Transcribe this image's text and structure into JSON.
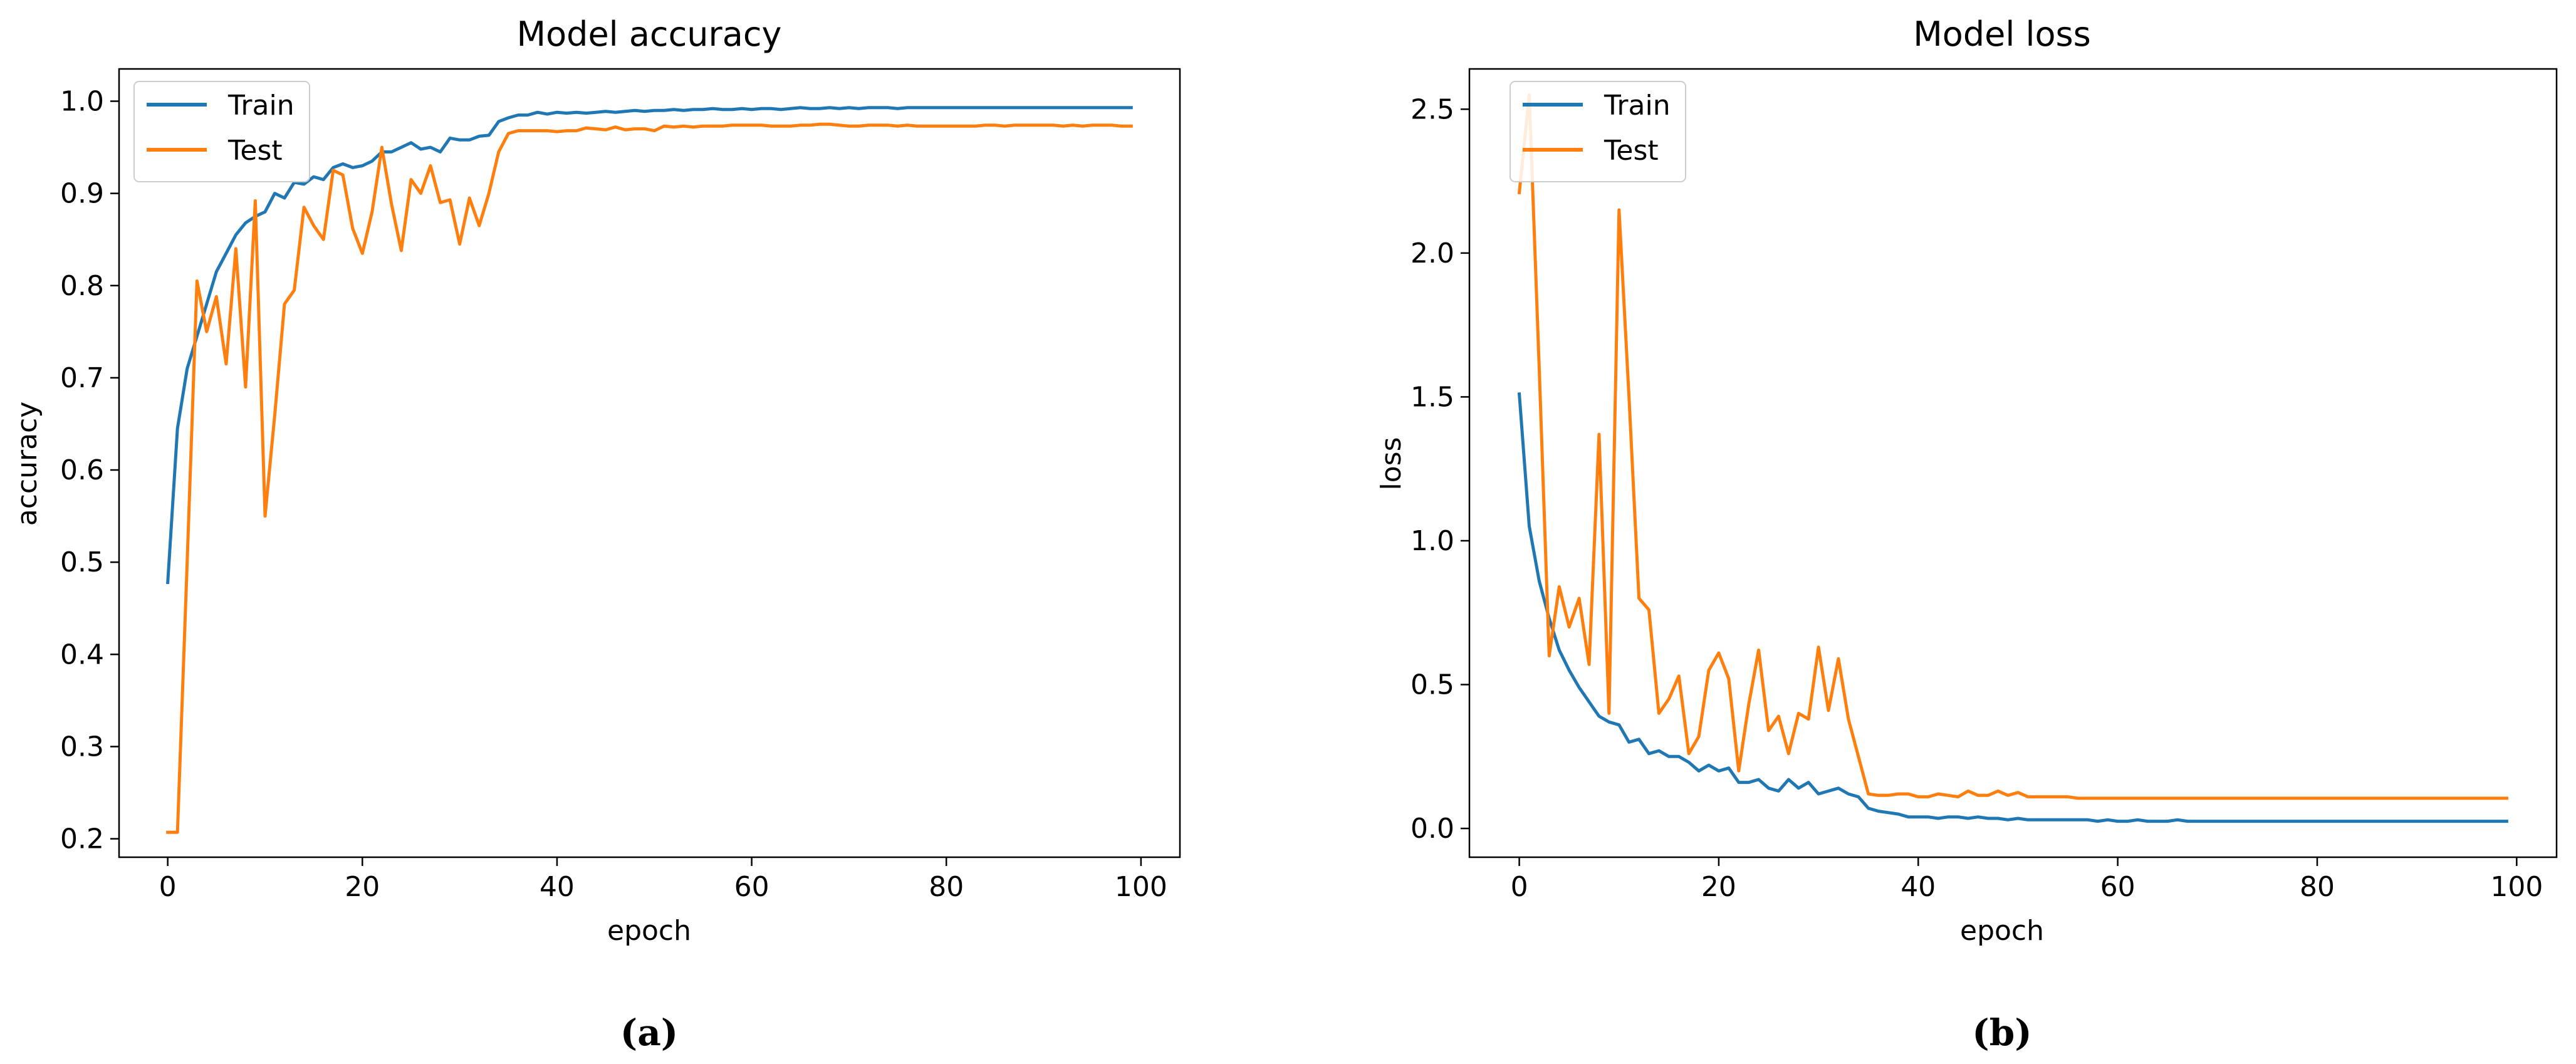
{
  "colors": {
    "train": "#1f77b4",
    "test": "#ff7f0e",
    "axes": "#000000",
    "background": "#ffffff"
  },
  "captions": [
    "(a)",
    "(b)"
  ],
  "chart_data": [
    {
      "type": "line",
      "title": "Model accuracy",
      "xlabel": "epoch",
      "ylabel": "accuracy",
      "xlim": [
        -5,
        104
      ],
      "ylim": [
        0.18,
        1.035
      ],
      "xticks": [
        0,
        20,
        40,
        60,
        80,
        100
      ],
      "yticks": [
        0.2,
        0.3,
        0.4,
        0.5,
        0.6,
        0.7,
        0.8,
        0.9,
        1.0
      ],
      "ytick_labels": [
        "0.2",
        "0.3",
        "0.4",
        "0.5",
        "0.6",
        "0.7",
        "0.8",
        "0.9",
        "1.0"
      ],
      "grid": false,
      "legend": "top-left",
      "series": [
        {
          "name": "Train",
          "color": "#1f77b4",
          "x": [
            0,
            1,
            2,
            3,
            4,
            5,
            6,
            7,
            8,
            9,
            10,
            11,
            12,
            13,
            14,
            15,
            16,
            17,
            18,
            19,
            20,
            21,
            22,
            23,
            24,
            25,
            26,
            27,
            28,
            29,
            30,
            31,
            32,
            33,
            34,
            35,
            36,
            37,
            38,
            39,
            40,
            41,
            42,
            43,
            44,
            45,
            46,
            47,
            48,
            49,
            50,
            51,
            52,
            53,
            54,
            55,
            56,
            57,
            58,
            59,
            60,
            61,
            62,
            63,
            64,
            65,
            66,
            67,
            68,
            69,
            70,
            71,
            72,
            73,
            74,
            75,
            76,
            77,
            78,
            79,
            80,
            81,
            82,
            83,
            84,
            85,
            86,
            87,
            88,
            89,
            90,
            91,
            92,
            93,
            94,
            95,
            96,
            97,
            98,
            99
          ],
          "values": [
            0.478,
            0.645,
            0.71,
            0.745,
            0.78,
            0.815,
            0.835,
            0.855,
            0.868,
            0.875,
            0.88,
            0.9,
            0.895,
            0.912,
            0.91,
            0.918,
            0.915,
            0.928,
            0.932,
            0.928,
            0.93,
            0.935,
            0.945,
            0.945,
            0.95,
            0.955,
            0.948,
            0.95,
            0.945,
            0.96,
            0.958,
            0.958,
            0.962,
            0.963,
            0.978,
            0.982,
            0.985,
            0.985,
            0.988,
            0.986,
            0.988,
            0.987,
            0.988,
            0.987,
            0.988,
            0.989,
            0.988,
            0.989,
            0.99,
            0.989,
            0.99,
            0.99,
            0.991,
            0.99,
            0.991,
            0.991,
            0.992,
            0.991,
            0.991,
            0.992,
            0.991,
            0.992,
            0.992,
            0.991,
            0.992,
            0.993,
            0.992,
            0.992,
            0.993,
            0.992,
            0.993,
            0.992,
            0.993,
            0.993,
            0.993,
            0.992,
            0.993,
            0.993,
            0.993,
            0.993,
            0.993,
            0.993,
            0.993,
            0.993,
            0.993,
            0.993,
            0.993,
            0.993,
            0.993,
            0.993,
            0.993,
            0.993,
            0.993,
            0.993,
            0.993,
            0.993,
            0.993,
            0.993,
            0.993,
            0.993
          ]
        },
        {
          "name": "Test",
          "color": "#ff7f0e",
          "x": [
            0,
            1,
            2,
            3,
            4,
            5,
            6,
            7,
            8,
            9,
            10,
            11,
            12,
            13,
            14,
            15,
            16,
            17,
            18,
            19,
            20,
            21,
            22,
            23,
            24,
            25,
            26,
            27,
            28,
            29,
            30,
            31,
            32,
            33,
            34,
            35,
            36,
            37,
            38,
            39,
            40,
            41,
            42,
            43,
            44,
            45,
            46,
            47,
            48,
            49,
            50,
            51,
            52,
            53,
            54,
            55,
            56,
            57,
            58,
            59,
            60,
            61,
            62,
            63,
            64,
            65,
            66,
            67,
            68,
            69,
            70,
            71,
            72,
            73,
            74,
            75,
            76,
            77,
            78,
            79,
            80,
            81,
            82,
            83,
            84,
            85,
            86,
            87,
            88,
            89,
            90,
            91,
            92,
            93,
            94,
            95,
            96,
            97,
            98,
            99
          ],
          "values": [
            0.207,
            0.207,
            0.5,
            0.805,
            0.75,
            0.788,
            0.715,
            0.84,
            0.69,
            0.892,
            0.55,
            0.66,
            0.78,
            0.795,
            0.885,
            0.865,
            0.85,
            0.925,
            0.92,
            0.862,
            0.835,
            0.88,
            0.95,
            0.888,
            0.838,
            0.915,
            0.9,
            0.93,
            0.89,
            0.893,
            0.845,
            0.895,
            0.865,
            0.9,
            0.945,
            0.965,
            0.968,
            0.968,
            0.968,
            0.968,
            0.967,
            0.968,
            0.968,
            0.971,
            0.97,
            0.969,
            0.972,
            0.969,
            0.97,
            0.97,
            0.968,
            0.973,
            0.972,
            0.973,
            0.972,
            0.973,
            0.973,
            0.973,
            0.974,
            0.974,
            0.974,
            0.974,
            0.973,
            0.973,
            0.973,
            0.974,
            0.974,
            0.975,
            0.975,
            0.974,
            0.973,
            0.973,
            0.974,
            0.974,
            0.974,
            0.973,
            0.974,
            0.973,
            0.973,
            0.973,
            0.973,
            0.973,
            0.973,
            0.973,
            0.974,
            0.974,
            0.973,
            0.974,
            0.974,
            0.974,
            0.974,
            0.974,
            0.973,
            0.974,
            0.973,
            0.974,
            0.974,
            0.974,
            0.973,
            0.973
          ]
        }
      ]
    },
    {
      "type": "line",
      "title": "Model loss",
      "xlabel": "epoch",
      "ylabel": "loss",
      "xlim": [
        -5,
        104
      ],
      "ylim": [
        -0.1,
        2.64
      ],
      "xticks": [
        0,
        20,
        40,
        60,
        80,
        100
      ],
      "yticks": [
        0.0,
        0.5,
        1.0,
        1.5,
        2.0,
        2.5
      ],
      "ytick_labels": [
        "0.0",
        "0.5",
        "1.0",
        "1.5",
        "2.0",
        "2.5"
      ],
      "grid": false,
      "legend": "top-left",
      "series": [
        {
          "name": "Train",
          "color": "#1f77b4",
          "x": [
            0,
            1,
            2,
            3,
            4,
            5,
            6,
            7,
            8,
            9,
            10,
            11,
            12,
            13,
            14,
            15,
            16,
            17,
            18,
            19,
            20,
            21,
            22,
            23,
            24,
            25,
            26,
            27,
            28,
            29,
            30,
            31,
            32,
            33,
            34,
            35,
            36,
            37,
            38,
            39,
            40,
            41,
            42,
            43,
            44,
            45,
            46,
            47,
            48,
            49,
            50,
            51,
            52,
            53,
            54,
            55,
            56,
            57,
            58,
            59,
            60,
            61,
            62,
            63,
            64,
            65,
            66,
            67,
            68,
            69,
            70,
            71,
            72,
            73,
            74,
            75,
            76,
            77,
            78,
            79,
            80,
            81,
            82,
            83,
            84,
            85,
            86,
            87,
            88,
            89,
            90,
            91,
            92,
            93,
            94,
            95,
            96,
            97,
            98,
            99
          ],
          "values": [
            1.51,
            1.05,
            0.86,
            0.73,
            0.62,
            0.55,
            0.49,
            0.44,
            0.39,
            0.37,
            0.36,
            0.3,
            0.31,
            0.26,
            0.27,
            0.25,
            0.25,
            0.23,
            0.2,
            0.22,
            0.2,
            0.21,
            0.16,
            0.16,
            0.17,
            0.14,
            0.13,
            0.17,
            0.14,
            0.16,
            0.12,
            0.13,
            0.14,
            0.12,
            0.11,
            0.07,
            0.06,
            0.055,
            0.05,
            0.04,
            0.04,
            0.04,
            0.035,
            0.04,
            0.04,
            0.035,
            0.04,
            0.035,
            0.035,
            0.03,
            0.035,
            0.03,
            0.03,
            0.03,
            0.03,
            0.03,
            0.03,
            0.03,
            0.025,
            0.03,
            0.025,
            0.025,
            0.03,
            0.025,
            0.025,
            0.025,
            0.03,
            0.025,
            0.025,
            0.025,
            0.025,
            0.025,
            0.025,
            0.025,
            0.025,
            0.025,
            0.025,
            0.025,
            0.025,
            0.025,
            0.025,
            0.025,
            0.025,
            0.025,
            0.025,
            0.025,
            0.025,
            0.025,
            0.025,
            0.025,
            0.025,
            0.025,
            0.025,
            0.025,
            0.025,
            0.025,
            0.025,
            0.025,
            0.025,
            0.025
          ]
        },
        {
          "name": "Test",
          "color": "#ff7f0e",
          "x": [
            0,
            1,
            2,
            3,
            4,
            5,
            6,
            7,
            8,
            9,
            10,
            11,
            12,
            13,
            14,
            15,
            16,
            17,
            18,
            19,
            20,
            21,
            22,
            23,
            24,
            25,
            26,
            27,
            28,
            29,
            30,
            31,
            32,
            33,
            34,
            35,
            36,
            37,
            38,
            39,
            40,
            41,
            42,
            43,
            44,
            45,
            46,
            47,
            48,
            49,
            50,
            51,
            52,
            53,
            54,
            55,
            56,
            57,
            58,
            59,
            60,
            61,
            62,
            63,
            64,
            65,
            66,
            67,
            68,
            69,
            70,
            71,
            72,
            73,
            74,
            75,
            76,
            77,
            78,
            79,
            80,
            81,
            82,
            83,
            84,
            85,
            86,
            87,
            88,
            89,
            90,
            91,
            92,
            93,
            94,
            95,
            96,
            97,
            98,
            99
          ],
          "values": [
            2.21,
            2.55,
            1.6,
            0.6,
            0.84,
            0.7,
            0.8,
            0.57,
            1.37,
            0.4,
            2.15,
            1.5,
            0.8,
            0.76,
            0.4,
            0.45,
            0.53,
            0.26,
            0.32,
            0.55,
            0.61,
            0.52,
            0.2,
            0.43,
            0.62,
            0.34,
            0.39,
            0.26,
            0.4,
            0.38,
            0.63,
            0.41,
            0.59,
            0.38,
            0.25,
            0.12,
            0.115,
            0.115,
            0.12,
            0.12,
            0.11,
            0.11,
            0.12,
            0.115,
            0.11,
            0.13,
            0.115,
            0.115,
            0.13,
            0.115,
            0.125,
            0.11,
            0.11,
            0.11,
            0.11,
            0.11,
            0.105,
            0.105,
            0.105,
            0.105,
            0.105,
            0.105,
            0.105,
            0.105,
            0.105,
            0.105,
            0.105,
            0.105,
            0.105,
            0.105,
            0.105,
            0.105,
            0.105,
            0.105,
            0.105,
            0.105,
            0.105,
            0.105,
            0.105,
            0.105,
            0.105,
            0.105,
            0.105,
            0.105,
            0.105,
            0.105,
            0.105,
            0.105,
            0.105,
            0.105,
            0.105,
            0.105,
            0.105,
            0.105,
            0.105,
            0.105,
            0.105,
            0.105,
            0.105,
            0.105
          ]
        }
      ]
    }
  ]
}
